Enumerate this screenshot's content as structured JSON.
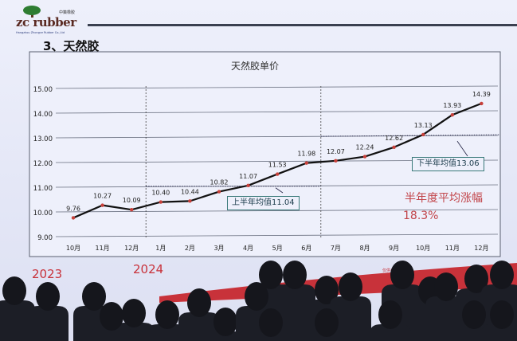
{
  "logo": {
    "brand": "zc rubber",
    "cn": "中策橡胶",
    "sub": "Hangzhou Zhongce Rubber Co.,Ltd"
  },
  "section_title": "3、天然胶",
  "chart_data": {
    "type": "line",
    "title": "天然胶单价",
    "categories": [
      "10月",
      "11月",
      "12月",
      "1月",
      "2月",
      "3月",
      "4月",
      "5月",
      "6月",
      "7月",
      "8月",
      "9月",
      "10月",
      "11月",
      "12月"
    ],
    "series": [
      {
        "values": [
          9.76,
          10.27,
          10.09,
          10.4,
          10.44,
          10.82,
          11.07,
          11.53,
          11.98,
          12.07,
          12.24,
          12.62,
          13.13,
          13.93,
          14.39
        ]
      }
    ],
    "data_labels": [
      "9.76",
      "10.27",
      "10.09",
      "10.40",
      "10.44",
      "10.82",
      "11.07",
      "11.53",
      "11.98",
      "12.07",
      "12.24",
      "12.62",
      "13.13",
      "13.93",
      "14.39"
    ],
    "ylim": [
      9,
      15
    ],
    "yticks": [
      "9.00",
      "10.00",
      "11.00",
      "12.00",
      "13.00",
      "14.00",
      "15.00"
    ],
    "grid": true,
    "line_color": "#111111",
    "marker_color": "#c8403a",
    "annotations": {
      "h1_avg": {
        "label": "上半年均值11.04",
        "value": 11.04
      },
      "h2_avg": {
        "label": "下半年均值13.06",
        "value": 13.06
      },
      "rise_label": "半年度平均涨幅",
      "rise_value": "18.3%"
    }
  },
  "years": {
    "y2023": "2023",
    "y2024": "2024"
  },
  "note": "仅供参考",
  "colors": {
    "year_red": "#c8323a",
    "accent_teal": "#3a7a7a"
  }
}
